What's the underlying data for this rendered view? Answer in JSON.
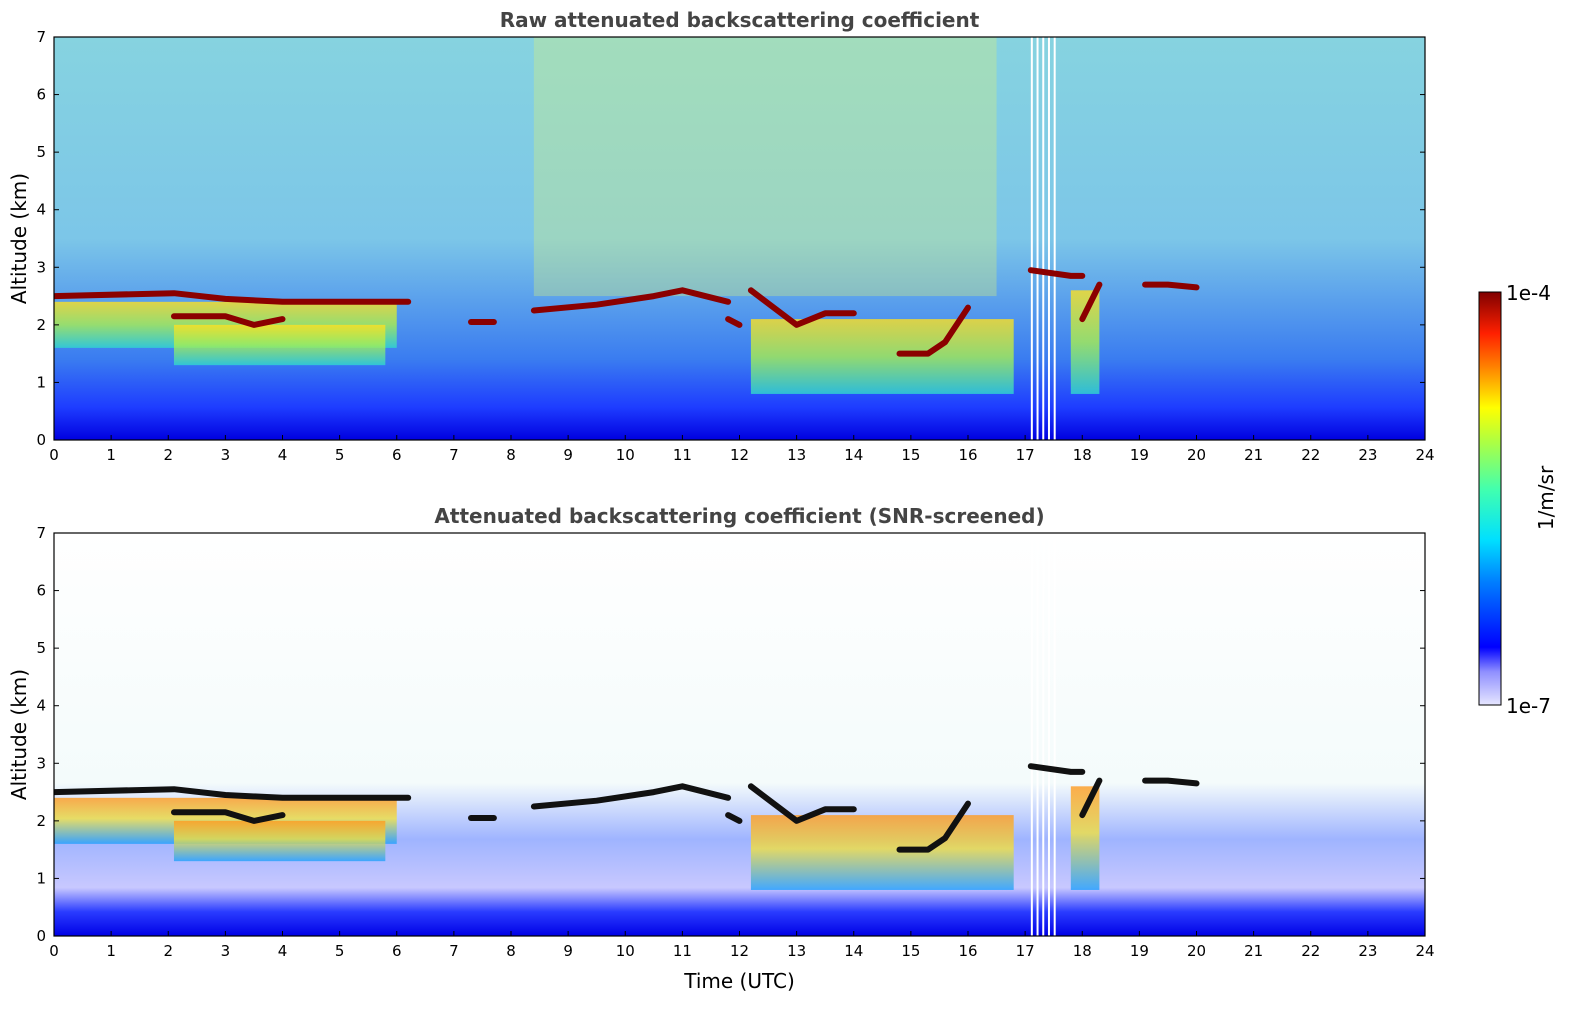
{
  "chart_data": [
    {
      "type": "heatmap",
      "title": "Raw attenuated backscattering coefficient",
      "xlabel": "",
      "ylabel": "Altitude (km)",
      "xlim": [
        0,
        24
      ],
      "ylim": [
        0,
        7
      ],
      "x_ticks": [
        "0",
        "1",
        "2",
        "3",
        "4",
        "5",
        "6",
        "7",
        "8",
        "9",
        "10",
        "11",
        "12",
        "13",
        "14",
        "15",
        "16",
        "17",
        "18",
        "19",
        "20",
        "21",
        "22",
        "23",
        "24"
      ],
      "y_ticks": [
        "0",
        "1",
        "2",
        "3",
        "4",
        "5",
        "6",
        "7"
      ],
      "background": "noisy",
      "layers": [
        {
          "x": [
            0,
            2.1,
            3.0,
            4.0,
            5.0,
            6.2
          ],
          "y": [
            2.5,
            2.55,
            2.45,
            2.4,
            2.4,
            2.4
          ]
        },
        {
          "x": [
            2.1,
            3.0,
            3.5,
            4.0
          ],
          "y": [
            2.15,
            2.15,
            2.0,
            2.1
          ]
        },
        {
          "x": [
            7.3,
            7.7
          ],
          "y": [
            2.05,
            2.05
          ]
        },
        {
          "x": [
            8.4,
            9.5,
            10.5,
            11.0,
            11.8
          ],
          "y": [
            2.25,
            2.35,
            2.5,
            2.6,
            2.4
          ]
        },
        {
          "x": [
            11.8,
            12.0
          ],
          "y": [
            2.1,
            2.0
          ]
        },
        {
          "x": [
            12.2,
            13.0,
            13.5,
            14.0
          ],
          "y": [
            2.6,
            2.0,
            2.2,
            2.2
          ]
        },
        {
          "x": [
            14.8,
            15.3,
            15.6,
            16.0
          ],
          "y": [
            1.5,
            1.5,
            1.7,
            2.3
          ]
        },
        {
          "x": [
            17.1,
            17.8,
            18.0
          ],
          "y": [
            2.95,
            2.85,
            2.85
          ]
        },
        {
          "x": [
            18.0,
            18.3
          ],
          "y": [
            2.1,
            2.7
          ]
        },
        {
          "x": [
            19.1,
            19.5,
            20.0
          ],
          "y": [
            2.7,
            2.7,
            2.65
          ]
        }
      ]
    },
    {
      "type": "heatmap",
      "title": "Attenuated backscattering coefficient (SNR-screened)",
      "xlabel": "Time (UTC)",
      "ylabel": "Altitude (km)",
      "xlim": [
        0,
        24
      ],
      "ylim": [
        0,
        7
      ],
      "x_ticks": [
        "0",
        "1",
        "2",
        "3",
        "4",
        "5",
        "6",
        "7",
        "8",
        "9",
        "10",
        "11",
        "12",
        "13",
        "14",
        "15",
        "16",
        "17",
        "18",
        "19",
        "20",
        "21",
        "22",
        "23",
        "24"
      ],
      "y_ticks": [
        "0",
        "1",
        "2",
        "3",
        "4",
        "5",
        "6",
        "7"
      ],
      "background": "screened",
      "layers": [
        {
          "x": [
            0,
            2.1,
            3.0,
            4.0,
            5.0,
            6.2
          ],
          "y": [
            2.5,
            2.55,
            2.45,
            2.4,
            2.4,
            2.4
          ]
        },
        {
          "x": [
            2.1,
            3.0,
            3.5,
            4.0
          ],
          "y": [
            2.15,
            2.15,
            2.0,
            2.1
          ]
        },
        {
          "x": [
            7.3,
            7.7
          ],
          "y": [
            2.05,
            2.05
          ]
        },
        {
          "x": [
            8.4,
            9.5,
            10.5,
            11.0,
            11.8
          ],
          "y": [
            2.25,
            2.35,
            2.5,
            2.6,
            2.4
          ]
        },
        {
          "x": [
            11.8,
            12.0
          ],
          "y": [
            2.1,
            2.0
          ]
        },
        {
          "x": [
            12.2,
            13.0,
            13.5,
            14.0
          ],
          "y": [
            2.6,
            2.0,
            2.2,
            2.2
          ]
        },
        {
          "x": [
            14.8,
            15.3,
            15.6,
            16.0
          ],
          "y": [
            1.5,
            1.5,
            1.7,
            2.3
          ]
        },
        {
          "x": [
            17.1,
            17.8,
            18.0
          ],
          "y": [
            2.95,
            2.85,
            2.85
          ]
        },
        {
          "x": [
            18.0,
            18.3
          ],
          "y": [
            2.1,
            2.7
          ]
        },
        {
          "x": [
            19.1,
            19.5,
            20.0
          ],
          "y": [
            2.7,
            2.7,
            2.65
          ]
        }
      ]
    }
  ],
  "colorbar": {
    "label": "1/m/sr",
    "max_label": "1e-4",
    "min_label": "1e-7",
    "colormap": "jet",
    "scale": "log",
    "range": [
      1e-07,
      0.0001
    ]
  }
}
